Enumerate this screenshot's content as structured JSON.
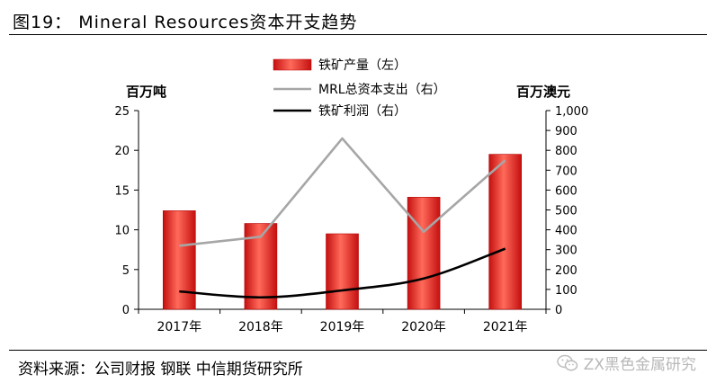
{
  "figure": {
    "title": "图19： Mineral Resources资本开支趋势",
    "source": "资料来源：公司财报 钢联 中信期货研究所",
    "watermark": "ZX黑色金属研究"
  },
  "colors": {
    "bar_fill": "#e01b1b",
    "bar_gradient_light": "#ff7a6a",
    "capex_line": "#a6a6a6",
    "profit_line": "#000000",
    "axis": "#000000"
  },
  "chart_data": {
    "type": "bar",
    "categories": [
      "2017年",
      "2018年",
      "2019年",
      "2020年",
      "2021年"
    ],
    "y_left": {
      "unit_label": "百万吨",
      "range": [
        0,
        25
      ],
      "ticks": [
        "0",
        "5",
        "10",
        "15",
        "20",
        "25"
      ]
    },
    "y_right": {
      "unit_label": "百万澳元",
      "range": [
        0,
        1000
      ],
      "ticks": [
        "0",
        "100",
        "200",
        "300",
        "400",
        "500",
        "600",
        "700",
        "800",
        "900",
        "1,000"
      ]
    },
    "series": [
      {
        "name": "铁矿产量（左）",
        "type": "bar",
        "axis": "left",
        "values": [
          12.4,
          10.8,
          9.5,
          14.1,
          19.5
        ]
      },
      {
        "name": "MRL总资本支出（右）",
        "type": "line",
        "axis": "right",
        "values": [
          320,
          365,
          860,
          390,
          750
        ]
      },
      {
        "name": "铁矿利润（右）",
        "type": "line",
        "axis": "right",
        "values": [
          90,
          60,
          95,
          155,
          305
        ]
      }
    ],
    "legend_position": "top-center",
    "grid": false
  }
}
